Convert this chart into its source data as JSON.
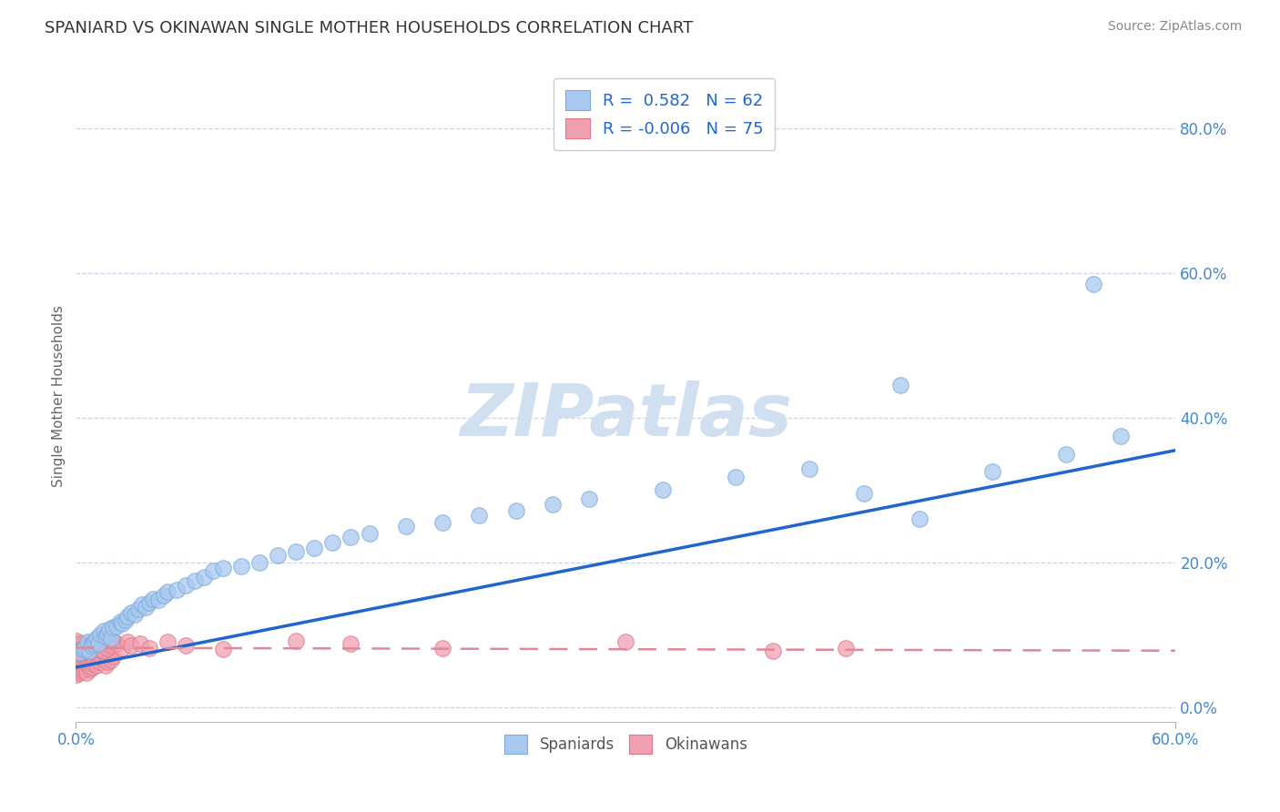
{
  "title": "SPANIARD VS OKINAWAN SINGLE MOTHER HOUSEHOLDS CORRELATION CHART",
  "source": "Source: ZipAtlas.com",
  "ylabel": "Single Mother Households",
  "yticks": [
    "0.0%",
    "20.0%",
    "40.0%",
    "60.0%",
    "80.0%"
  ],
  "ytick_vals": [
    0.0,
    0.2,
    0.4,
    0.6,
    0.8
  ],
  "xlim": [
    0.0,
    0.6
  ],
  "ylim": [
    -0.02,
    0.88
  ],
  "legend_blue_r": "0.582",
  "legend_blue_n": "62",
  "legend_pink_r": "-0.006",
  "legend_pink_n": "75",
  "blue_color": "#a8c8f0",
  "pink_color": "#f0a0b0",
  "blue_edge_color": "#7aaad8",
  "pink_edge_color": "#e07888",
  "blue_line_color": "#2266cc",
  "pink_line_color": "#e08898",
  "watermark": "ZIPatlas",
  "watermark_color": "#d0e0f0",
  "background_color": "#ffffff",
  "grid_color": "#c8d4e8",
  "tick_label_color": "#4488cc",
  "title_color": "#333333",
  "source_color": "#888888",
  "ylabel_color": "#666666",
  "sp_x": [
    0.002,
    0.004,
    0.005,
    0.006,
    0.007,
    0.008,
    0.009,
    0.01,
    0.011,
    0.012,
    0.013,
    0.015,
    0.016,
    0.017,
    0.018,
    0.019,
    0.02,
    0.022,
    0.024,
    0.025,
    0.027,
    0.028,
    0.03,
    0.032,
    0.034,
    0.036,
    0.038,
    0.04,
    0.042,
    0.045,
    0.048,
    0.05,
    0.055,
    0.06,
    0.065,
    0.07,
    0.075,
    0.08,
    0.09,
    0.1,
    0.11,
    0.12,
    0.13,
    0.14,
    0.15,
    0.16,
    0.18,
    0.2,
    0.22,
    0.24,
    0.26,
    0.28,
    0.32,
    0.36,
    0.4,
    0.43,
    0.46,
    0.5,
    0.54,
    0.57,
    0.45,
    0.555
  ],
  "sp_y": [
    0.075,
    0.08,
    0.082,
    0.09,
    0.078,
    0.085,
    0.088,
    0.092,
    0.095,
    0.088,
    0.1,
    0.105,
    0.098,
    0.102,
    0.108,
    0.095,
    0.11,
    0.112,
    0.118,
    0.115,
    0.12,
    0.125,
    0.13,
    0.128,
    0.135,
    0.142,
    0.138,
    0.145,
    0.15,
    0.148,
    0.155,
    0.16,
    0.162,
    0.168,
    0.175,
    0.18,
    0.188,
    0.192,
    0.195,
    0.2,
    0.21,
    0.215,
    0.22,
    0.228,
    0.235,
    0.24,
    0.25,
    0.255,
    0.265,
    0.272,
    0.28,
    0.288,
    0.3,
    0.318,
    0.33,
    0.295,
    0.26,
    0.325,
    0.35,
    0.375,
    0.445,
    0.585
  ],
  "ok_x": [
    0.0005,
    0.001,
    0.0015,
    0.002,
    0.0025,
    0.003,
    0.0035,
    0.004,
    0.0045,
    0.005,
    0.0055,
    0.006,
    0.0065,
    0.007,
    0.0075,
    0.008,
    0.0085,
    0.009,
    0.0095,
    0.01,
    0.011,
    0.012,
    0.013,
    0.014,
    0.015,
    0.016,
    0.017,
    0.018,
    0.019,
    0.02,
    0.0005,
    0.001,
    0.0015,
    0.002,
    0.0025,
    0.003,
    0.0035,
    0.004,
    0.0045,
    0.005,
    0.006,
    0.007,
    0.008,
    0.009,
    0.01,
    0.011,
    0.012,
    0.013,
    0.014,
    0.015,
    0.016,
    0.017,
    0.018,
    0.019,
    0.02,
    0.022,
    0.025,
    0.028,
    0.03,
    0.035,
    0.04,
    0.05,
    0.06,
    0.08,
    0.12,
    0.15,
    0.2,
    0.3,
    0.38,
    0.42,
    0.0005,
    0.001,
    0.002,
    0.003,
    0.004
  ],
  "ok_y": [
    0.045,
    0.05,
    0.052,
    0.048,
    0.055,
    0.058,
    0.05,
    0.052,
    0.06,
    0.055,
    0.048,
    0.062,
    0.058,
    0.065,
    0.052,
    0.068,
    0.055,
    0.06,
    0.072,
    0.065,
    0.058,
    0.07,
    0.062,
    0.068,
    0.075,
    0.058,
    0.062,
    0.078,
    0.065,
    0.07,
    0.08,
    0.075,
    0.082,
    0.078,
    0.085,
    0.08,
    0.075,
    0.082,
    0.088,
    0.078,
    0.082,
    0.085,
    0.078,
    0.09,
    0.082,
    0.088,
    0.08,
    0.092,
    0.085,
    0.078,
    0.088,
    0.082,
    0.09,
    0.085,
    0.092,
    0.088,
    0.082,
    0.09,
    0.085,
    0.088,
    0.082,
    0.09,
    0.085,
    0.08,
    0.092,
    0.088,
    0.082,
    0.09,
    0.078,
    0.082,
    0.092,
    0.085,
    0.088,
    0.08,
    0.082
  ],
  "blue_line_x": [
    0.0,
    0.6
  ],
  "blue_line_y": [
    0.055,
    0.355
  ],
  "pink_line_x": [
    0.0,
    0.6
  ],
  "pink_line_y": [
    0.082,
    0.078
  ]
}
